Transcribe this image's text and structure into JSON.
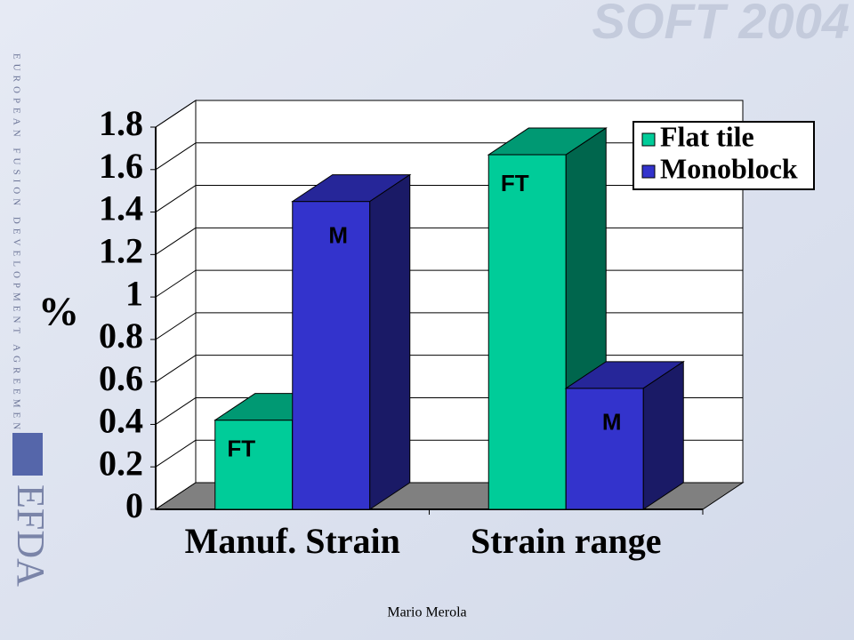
{
  "slide": {
    "brand": "SOFT 2004",
    "side_text": "EUROPEAN FUSION DEVELOPMENT AGREEMENT",
    "logo": "EFDA",
    "footer": "Mario Merola"
  },
  "chart_data": {
    "type": "bar3d",
    "y_label": "%",
    "categories": [
      "Manuf. Strain",
      "Strain range"
    ],
    "series": [
      {
        "name": "Flat tile",
        "color": "#00cc99",
        "values": [
          0.42,
          1.67
        ],
        "labels": [
          "FT",
          "FT"
        ]
      },
      {
        "name": "Monoblock",
        "color": "#3333cc",
        "values": [
          1.45,
          0.57
        ],
        "labels": [
          "M",
          "M"
        ]
      }
    ],
    "ylim": [
      0,
      1.8
    ],
    "yticks": [
      0,
      0.2,
      0.4,
      0.6,
      0.8,
      1,
      1.2,
      1.4,
      1.6,
      1.8
    ],
    "grid": true,
    "legend": "top-right"
  }
}
